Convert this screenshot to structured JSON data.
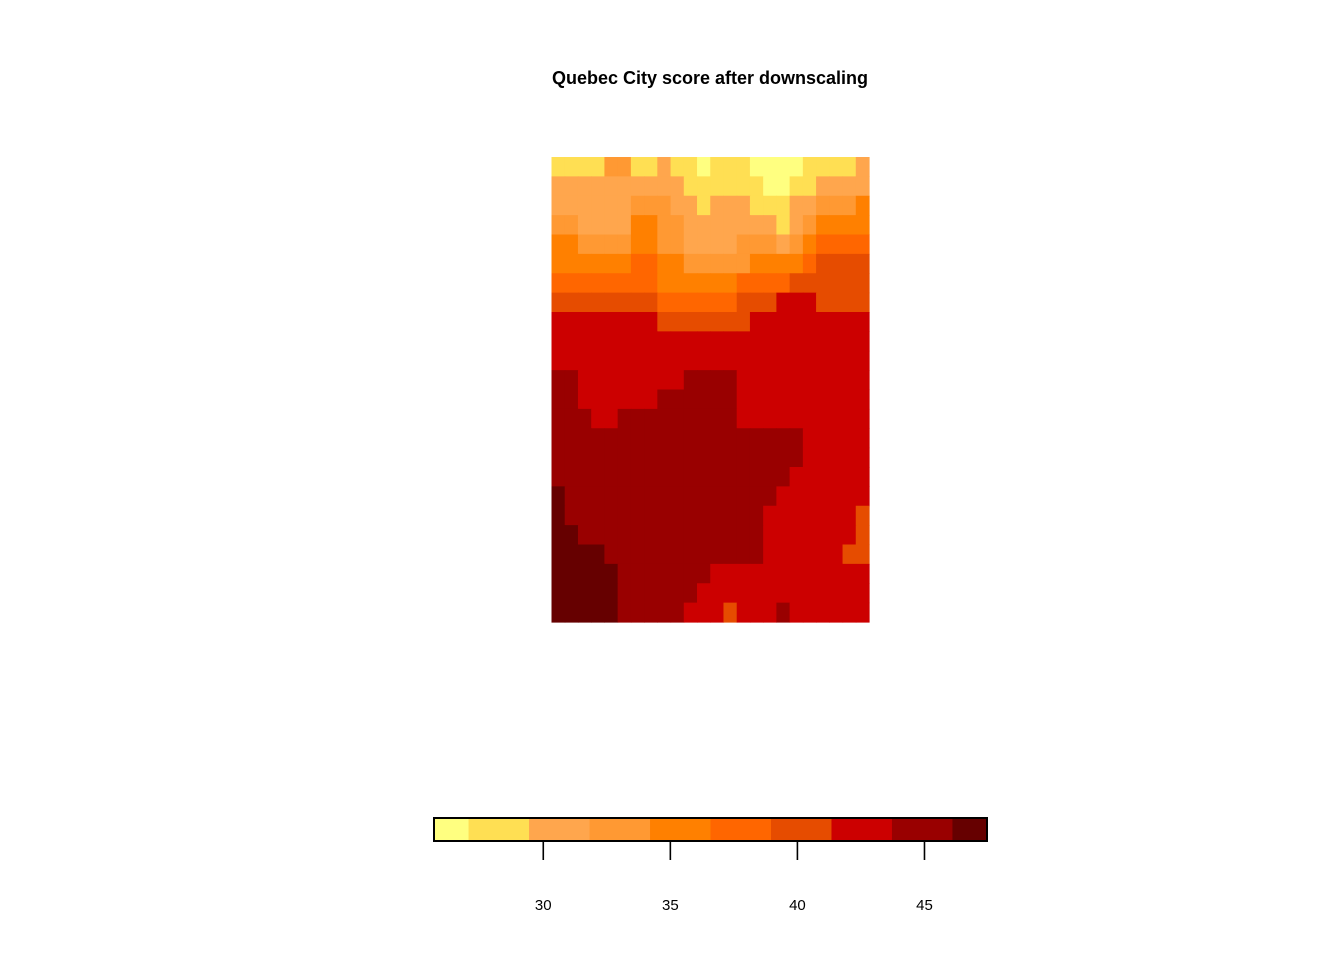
{
  "chart_data": {
    "type": "heatmap",
    "title": "Quebec City score after downscaling",
    "xlabel": "",
    "ylabel": "",
    "grid": false,
    "legend": "bottom",
    "palette": [
      "#FFFF80",
      "#FFDF53",
      "#FFA64D",
      "#FF9933",
      "#FF8000",
      "#FF6600",
      "#E64C00",
      "#CC0000",
      "#990000",
      "#660000"
    ],
    "colorbar": {
      "breaks": [
        25.7,
        27.06,
        29.44,
        31.82,
        34.2,
        36.58,
        38.96,
        41.34,
        43.72,
        46.1,
        47.46
      ],
      "ticks": [
        30,
        35,
        40,
        45
      ],
      "tick_labels": [
        "30",
        "35",
        "40",
        "45"
      ]
    },
    "ncol": 24,
    "nrow": 24,
    "level_values": [
      26.4,
      28.2,
      30.6,
      33.0,
      35.4,
      37.8,
      40.2,
      42.5,
      44.9,
      46.8
    ],
    "grid_levels": [
      [
        1,
        1,
        1,
        1,
        3,
        3,
        1,
        1,
        2,
        1,
        1,
        0,
        1,
        1,
        1,
        0,
        0,
        0,
        0,
        1,
        1,
        1,
        1,
        2
      ],
      [
        2,
        2,
        2,
        2,
        2,
        2,
        2,
        2,
        2,
        2,
        1,
        1,
        1,
        1,
        1,
        1,
        0,
        0,
        1,
        1,
        2,
        2,
        2,
        2
      ],
      [
        2,
        2,
        2,
        2,
        2,
        2,
        3,
        3,
        3,
        2,
        2,
        1,
        2,
        2,
        2,
        1,
        1,
        1,
        2,
        2,
        3,
        3,
        3,
        4
      ],
      [
        3,
        3,
        2,
        2,
        2,
        2,
        4,
        4,
        3,
        3,
        2,
        2,
        2,
        2,
        2,
        2,
        2,
        1,
        2,
        3,
        4,
        4,
        4,
        4
      ],
      [
        4,
        4,
        3,
        3,
        3,
        3,
        4,
        4,
        3,
        3,
        2,
        2,
        2,
        2,
        3,
        3,
        3,
        2,
        3,
        4,
        5,
        5,
        5,
        5
      ],
      [
        4,
        4,
        4,
        4,
        4,
        4,
        5,
        5,
        4,
        4,
        3,
        3,
        3,
        3,
        3,
        4,
        4,
        4,
        4,
        5,
        6,
        6,
        6,
        6
      ],
      [
        5,
        5,
        5,
        5,
        5,
        5,
        5,
        5,
        4,
        4,
        4,
        4,
        4,
        4,
        5,
        5,
        5,
        5,
        6,
        6,
        6,
        6,
        6,
        6
      ],
      [
        6,
        6,
        6,
        6,
        6,
        6,
        6,
        6,
        5,
        5,
        5,
        5,
        5,
        5,
        6,
        6,
        6,
        7,
        7,
        7,
        6,
        6,
        6,
        6
      ],
      [
        7,
        7,
        7,
        7,
        7,
        7,
        7,
        7,
        6,
        6,
        6,
        6,
        6,
        6,
        6,
        7,
        7,
        7,
        7,
        7,
        7,
        7,
        7,
        7
      ],
      [
        7,
        7,
        7,
        7,
        7,
        7,
        7,
        7,
        7,
        7,
        7,
        7,
        7,
        7,
        7,
        7,
        7,
        7,
        7,
        7,
        7,
        7,
        7,
        7
      ],
      [
        7,
        7,
        7,
        7,
        7,
        7,
        7,
        7,
        7,
        7,
        7,
        7,
        7,
        7,
        7,
        7,
        7,
        7,
        7,
        7,
        7,
        7,
        7,
        7
      ],
      [
        8,
        8,
        7,
        7,
        7,
        7,
        7,
        7,
        7,
        7,
        8,
        8,
        8,
        8,
        7,
        7,
        7,
        7,
        7,
        7,
        7,
        7,
        7,
        7
      ],
      [
        8,
        8,
        7,
        7,
        7,
        7,
        7,
        7,
        8,
        8,
        8,
        8,
        8,
        8,
        7,
        7,
        7,
        7,
        7,
        7,
        7,
        7,
        7,
        7
      ],
      [
        8,
        8,
        8,
        7,
        7,
        8,
        8,
        8,
        8,
        8,
        8,
        8,
        8,
        8,
        7,
        7,
        7,
        7,
        7,
        7,
        7,
        7,
        7,
        7
      ],
      [
        8,
        8,
        8,
        8,
        8,
        8,
        8,
        8,
        8,
        8,
        8,
        8,
        8,
        8,
        8,
        8,
        8,
        8,
        8,
        7,
        7,
        7,
        7,
        7
      ],
      [
        8,
        8,
        8,
        8,
        8,
        8,
        8,
        8,
        8,
        8,
        8,
        8,
        8,
        8,
        8,
        8,
        8,
        8,
        8,
        7,
        7,
        7,
        7,
        7
      ],
      [
        8,
        8,
        8,
        8,
        8,
        8,
        8,
        8,
        8,
        8,
        8,
        8,
        8,
        8,
        8,
        8,
        8,
        8,
        7,
        7,
        7,
        7,
        7,
        7
      ],
      [
        9,
        8,
        8,
        8,
        8,
        8,
        8,
        8,
        8,
        8,
        8,
        8,
        8,
        8,
        8,
        8,
        8,
        7,
        7,
        7,
        7,
        7,
        7,
        7
      ],
      [
        9,
        8,
        8,
        8,
        8,
        8,
        8,
        8,
        8,
        8,
        8,
        8,
        8,
        8,
        8,
        8,
        7,
        7,
        7,
        7,
        7,
        7,
        7,
        6
      ],
      [
        9,
        9,
        8,
        8,
        8,
        8,
        8,
        8,
        8,
        8,
        8,
        8,
        8,
        8,
        8,
        8,
        7,
        7,
        7,
        7,
        7,
        7,
        7,
        6
      ],
      [
        9,
        9,
        9,
        9,
        8,
        8,
        8,
        8,
        8,
        8,
        8,
        8,
        8,
        8,
        8,
        8,
        7,
        7,
        7,
        7,
        7,
        7,
        6,
        6
      ],
      [
        9,
        9,
        9,
        9,
        9,
        8,
        8,
        8,
        8,
        8,
        8,
        8,
        7,
        7,
        7,
        7,
        7,
        7,
        7,
        7,
        7,
        7,
        7,
        7
      ],
      [
        9,
        9,
        9,
        9,
        9,
        8,
        8,
        8,
        8,
        8,
        8,
        7,
        7,
        7,
        7,
        7,
        7,
        7,
        7,
        7,
        7,
        7,
        7,
        7
      ],
      [
        9,
        9,
        9,
        9,
        9,
        8,
        8,
        8,
        8,
        8,
        7,
        7,
        7,
        6,
        7,
        7,
        7,
        8,
        7,
        7,
        7,
        7,
        7,
        7
      ]
    ]
  }
}
